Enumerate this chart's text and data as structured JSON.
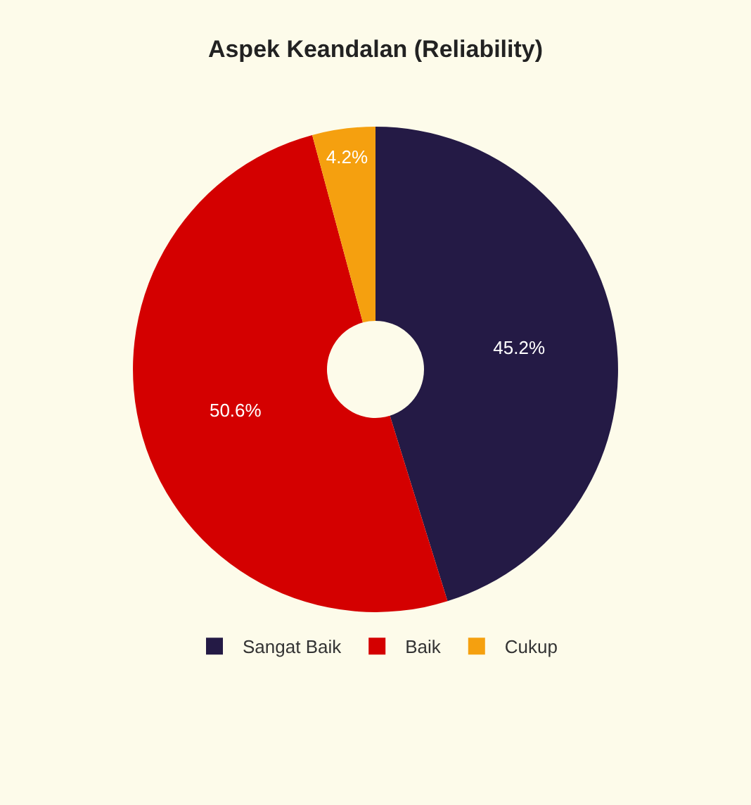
{
  "chart_data": {
    "type": "donut",
    "title": "Aspek Keandalan (Reliability)",
    "categories": [
      "Sangat Baik",
      "Baik",
      "Cukup"
    ],
    "values": [
      45.2,
      50.6,
      4.2
    ],
    "colors": [
      "#241a45",
      "#d40000",
      "#f5a00f"
    ],
    "value_labels": [
      "45.2%",
      "50.6%",
      "4.2%"
    ],
    "legend": "bottom"
  }
}
